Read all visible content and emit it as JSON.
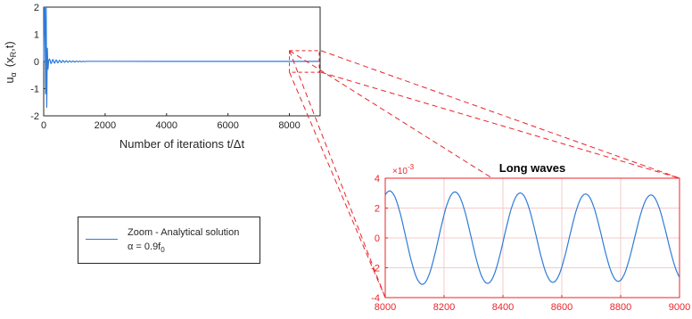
{
  "chart_data": [
    {
      "type": "line",
      "title": "",
      "xlabel": "Number of iterations t/Δt",
      "ylabel_main": "u",
      "ylabel_sub": "α",
      "ylabel_args": "(x",
      "ylabel_args_sub": "R",
      "ylabel_args_end": ",t)",
      "xlim": [
        0,
        9000
      ],
      "ylim": [
        -2,
        2
      ],
      "xticks": [
        0,
        2000,
        4000,
        6000,
        8000
      ],
      "yticks": [
        -2,
        -1,
        0,
        1,
        2
      ],
      "grid": false,
      "color": "#2f7bd8",
      "series": [
        {
          "x": [
            0,
            20,
            40,
            60,
            80,
            100,
            120,
            140,
            160,
            200,
            250,
            300,
            400,
            500,
            700,
            1000,
            2000,
            4000,
            6000,
            8000,
            9000
          ],
          "y": [
            0,
            2,
            2,
            -1.2,
            2,
            -1.7,
            0.5,
            -0.3,
            0.2,
            0.08,
            -0.08,
            0.05,
            -0.04,
            0.03,
            -0.02,
            0.01,
            0.005,
            0.003,
            0.003,
            0.003,
            0.003
          ]
        }
      ],
      "zoom_region": {
        "x": [
          8000,
          9000
        ],
        "y": [
          -0.2,
          0.2
        ]
      }
    },
    {
      "type": "line",
      "title": "Long waves",
      "xlabel": "",
      "ylabel": "",
      "exponent_label_base": "×10",
      "exponent_label_power": "-3",
      "xlim": [
        8000,
        9000
      ],
      "ylim": [
        -4,
        4
      ],
      "xticks": [
        8000,
        8200,
        8400,
        8600,
        8800,
        9000
      ],
      "yticks": [
        -4,
        -2,
        0,
        2,
        4
      ],
      "grid": true,
      "axis_color": "#e8252b",
      "color": "#2f7bd8",
      "series": [
        {
          "name": "Zoom - Analytical solution",
          "x": [
            8000,
            8025,
            8070,
            8125,
            8180,
            8230,
            8275,
            8350,
            8410,
            8460,
            8520,
            8575,
            8635,
            8690,
            8750,
            8800,
            8855,
            8915,
            8975,
            9000
          ],
          "y": [
            2.9,
            3.1,
            0.5,
            -3.2,
            -0.8,
            3.0,
            1.0,
            -3.1,
            0.5,
            2.95,
            -0.5,
            -3.0,
            0.3,
            2.9,
            -0.5,
            -2.9,
            0.0,
            2.85,
            -0.8,
            -2.2
          ]
        }
      ]
    }
  ],
  "legend": {
    "line1": "Zoom - Analytical solution",
    "line2_alpha": "α = 0.9f",
    "line2_sub": "0"
  }
}
